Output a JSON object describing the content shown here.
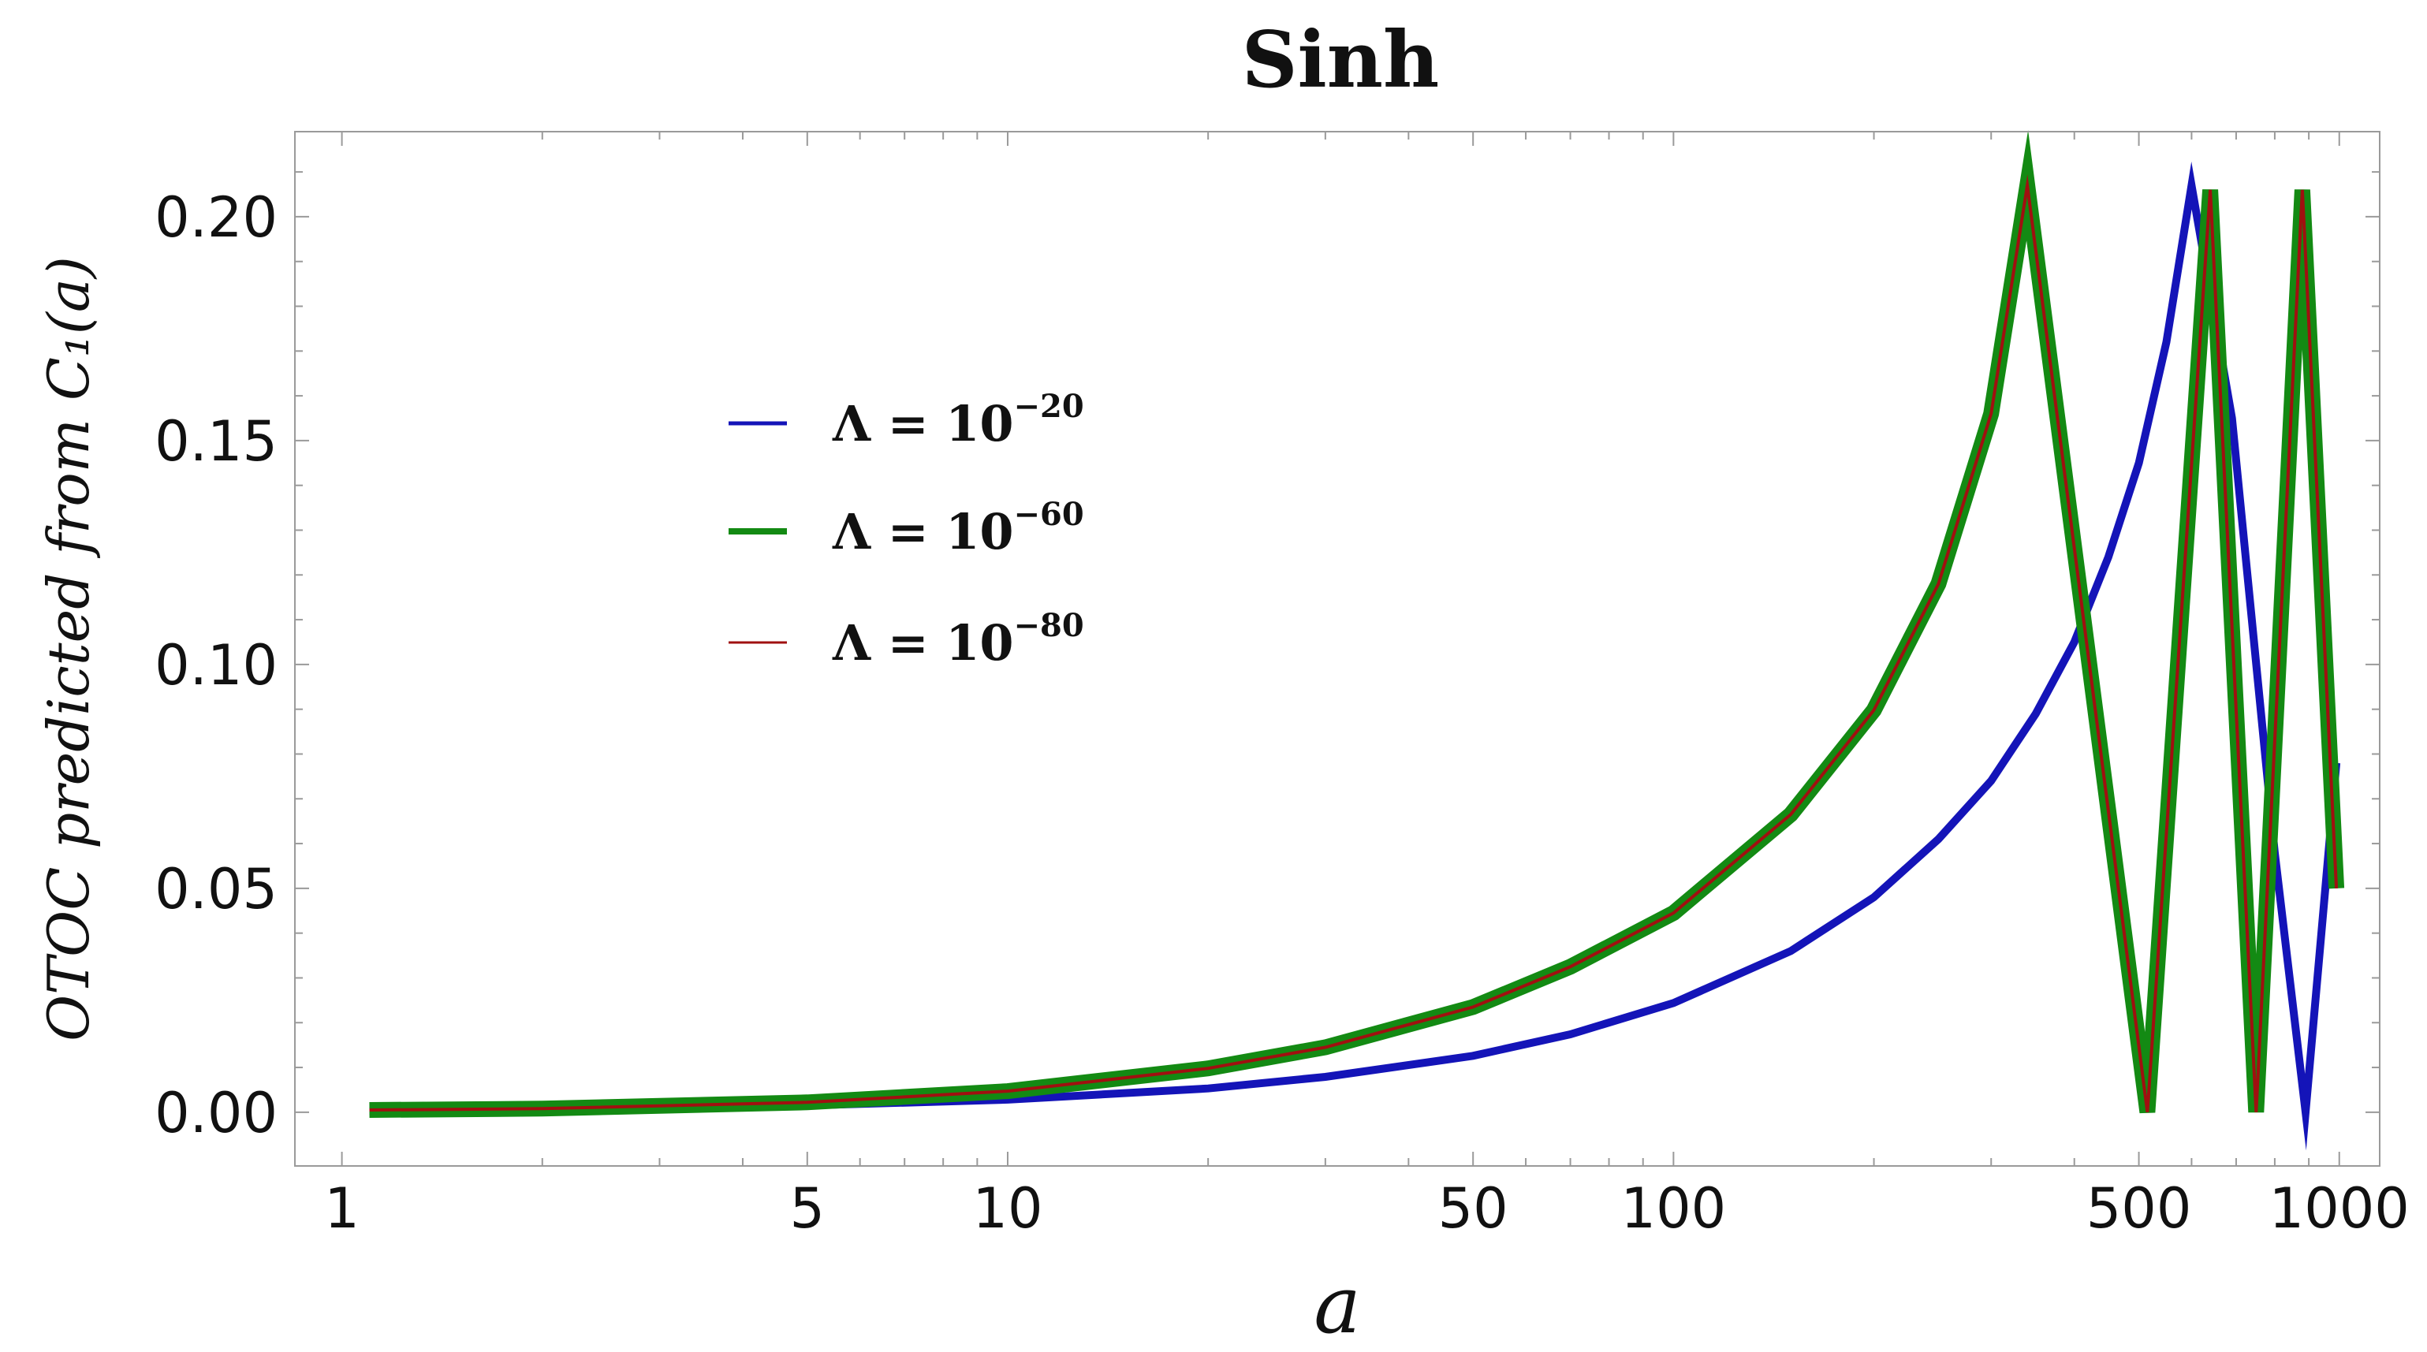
{
  "chart_data": {
    "type": "line",
    "title": "Sinh",
    "xlabel": "a",
    "ylabel": "OTOC predicted from C₁(a)",
    "x_scale": "log",
    "xlim": [
      0.85,
      1150
    ],
    "ylim": [
      -0.012,
      0.219
    ],
    "x_ticks": [
      {
        "value": 1,
        "label": "1"
      },
      {
        "value": 5,
        "label": "5"
      },
      {
        "value": 10,
        "label": "10"
      },
      {
        "value": 50,
        "label": "50"
      },
      {
        "value": 100,
        "label": "100"
      },
      {
        "value": 500,
        "label": "500"
      },
      {
        "value": 1000,
        "label": "1000"
      }
    ],
    "y_ticks": [
      {
        "value": 0.0,
        "label": "0.00"
      },
      {
        "value": 0.05,
        "label": "0.05"
      },
      {
        "value": 0.1,
        "label": "0.10"
      },
      {
        "value": 0.15,
        "label": "0.15"
      },
      {
        "value": 0.2,
        "label": "0.20"
      }
    ],
    "grid": false,
    "legend_position": "upper-left-inside",
    "series": [
      {
        "name": "Λ = 10",
        "name_exponent": "−20",
        "color": "#1414b8",
        "line_width": 10,
        "points": [
          [
            1.1,
            0.0003
          ],
          [
            2,
            0.0006
          ],
          [
            5,
            0.0015
          ],
          [
            10,
            0.0028
          ],
          [
            20,
            0.0053
          ],
          [
            30,
            0.0079
          ],
          [
            50,
            0.0126
          ],
          [
            70,
            0.0174
          ],
          [
            100,
            0.0244
          ],
          [
            150,
            0.036
          ],
          [
            200,
            0.048
          ],
          [
            250,
            0.061
          ],
          [
            300,
            0.074
          ],
          [
            350,
            0.089
          ],
          [
            400,
            0.105
          ],
          [
            450,
            0.124
          ],
          [
            500,
            0.145
          ],
          [
            550,
            0.172
          ],
          [
            600,
            0.207
          ],
          [
            690,
            0.155
          ],
          [
            800,
            0.058
          ],
          [
            890,
            0.0
          ],
          [
            990,
            0.078
          ]
        ]
      },
      {
        "name": "Λ = 10",
        "name_exponent": "−60",
        "color": "#138a13",
        "line_width": 20,
        "points": [
          [
            1.1,
            0.0005
          ],
          [
            2,
            0.0008
          ],
          [
            5,
            0.0022
          ],
          [
            10,
            0.0047
          ],
          [
            20,
            0.0098
          ],
          [
            30,
            0.0145
          ],
          [
            50,
            0.0235
          ],
          [
            70,
            0.0325
          ],
          [
            100,
            0.0445
          ],
          [
            150,
            0.0665
          ],
          [
            200,
            0.0898
          ],
          [
            250,
            0.118
          ],
          [
            300,
            0.156
          ],
          [
            340,
            0.207
          ],
          [
            515,
            0.0
          ],
          [
            640,
            0.206
          ],
          [
            750,
            0.0
          ],
          [
            880,
            0.206
          ],
          [
            990,
            0.05
          ]
        ]
      },
      {
        "name": "Λ = 10",
        "name_exponent": "−80",
        "color": "#a01010",
        "line_width": 4,
        "points": [
          [
            1.1,
            0.0005
          ],
          [
            2,
            0.0008
          ],
          [
            5,
            0.0022
          ],
          [
            10,
            0.0047
          ],
          [
            20,
            0.0098
          ],
          [
            30,
            0.0145
          ],
          [
            50,
            0.0235
          ],
          [
            70,
            0.0325
          ],
          [
            100,
            0.0445
          ],
          [
            150,
            0.0665
          ],
          [
            200,
            0.0898
          ],
          [
            250,
            0.118
          ],
          [
            300,
            0.156
          ],
          [
            340,
            0.207
          ],
          [
            515,
            0.0
          ],
          [
            640,
            0.206
          ],
          [
            750,
            0.0
          ],
          [
            880,
            0.206
          ],
          [
            990,
            0.05
          ]
        ]
      }
    ]
  }
}
